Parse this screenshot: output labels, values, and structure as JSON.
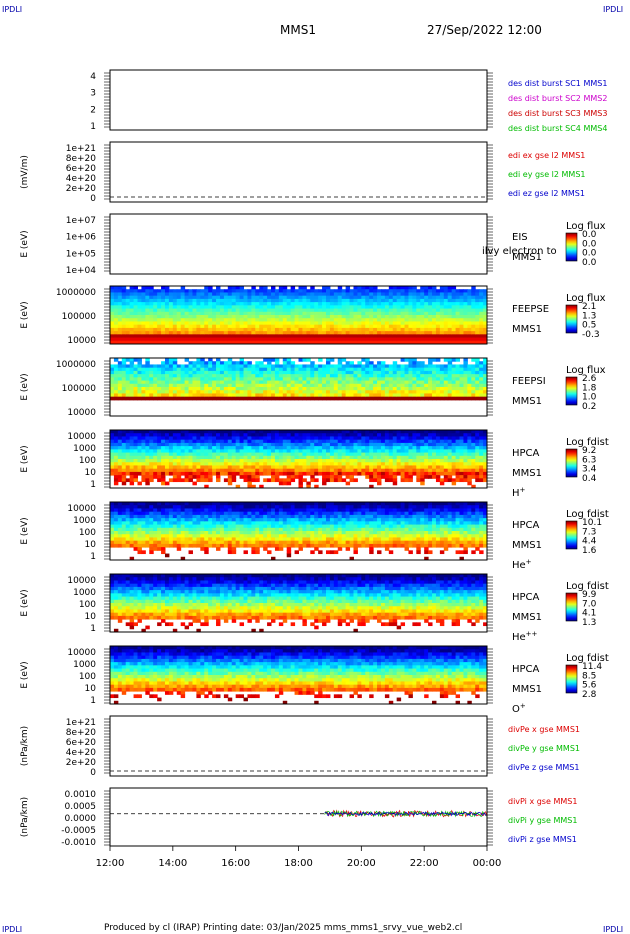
{
  "corner_tags": {
    "tl": "IPDLI",
    "tr": "IPDLI",
    "bl": "IPDLI",
    "br": "IPDLI"
  },
  "header": {
    "spacecraft": "MMS1",
    "datetime": "27/Sep/2022 12:00"
  },
  "footer": {
    "text": "Produced by cl (IRAP)   Printing date: 03/Jan/2025   mms_mms1_srvy_vue_web2.cl"
  },
  "colors": {
    "mms1": "#0000cc",
    "mms2": "#cc00cc",
    "mms3": "#cc0000",
    "mms4": "#00bb00",
    "x": "#dd0000",
    "y": "#00bb00",
    "z": "#0000cc"
  },
  "chart_data": [
    {
      "type": "line",
      "title": "",
      "ylabel": "",
      "ylim": [
        0.5,
        4.5
      ],
      "yticks": [
        "4",
        "3",
        "2",
        "1"
      ],
      "legend": [
        {
          "text": "des dist burst SC1 MMS1",
          "color": "#0000cc"
        },
        {
          "text": "des dist burst SC2 MMS2",
          "color": "#cc00cc"
        },
        {
          "text": "des dist burst SC3 MMS3",
          "color": "#cc0000"
        },
        {
          "text": "des dist burst SC4 MMS4",
          "color": "#00bb00"
        }
      ],
      "series": []
    },
    {
      "type": "line",
      "ylabel": "(mV/m)",
      "ylim": [
        0,
        1e+21
      ],
      "yticks": [
        "1e+21",
        "8e+20",
        "6e+20",
        "4e+20",
        "2e+20",
        "0"
      ],
      "zero_line": true,
      "legend": [
        {
          "text": "edi ex gse l2 MMS1",
          "color": "#dd0000"
        },
        {
          "text": "edi ey gse l2 MMS1",
          "color": "#00bb00"
        },
        {
          "text": "edi ez gse l2 MMS1",
          "color": "#0000cc"
        }
      ],
      "series": []
    },
    {
      "type": "heatmap",
      "ylabel": "E (eV)",
      "yticks": [
        "1e+07",
        "1e+06",
        "1e+05",
        "1e+04"
      ],
      "instrument": [
        "EIS",
        "MMS1"
      ],
      "overlay": "ilvy electron to",
      "cbar_title": "Log flux",
      "cbar_ticks": [
        "0.0",
        "0.0",
        "0.0",
        "0.0"
      ],
      "data": "none"
    },
    {
      "type": "heatmap",
      "ylabel": "E (eV)",
      "yticks": [
        "1000000",
        "100000",
        "10000"
      ],
      "instrument": [
        "FEEPSE",
        "MMS1"
      ],
      "cbar_title": "Log flux",
      "cbar_ticks": [
        "2.1",
        "1.3",
        "0.5",
        "-0.3"
      ],
      "data": "spectrogram"
    },
    {
      "type": "heatmap",
      "ylabel": "E (eV)",
      "yticks": [
        "1000000",
        "100000",
        "10000"
      ],
      "instrument": [
        "FEEPSI",
        "MMS1"
      ],
      "cbar_title": "Log flux",
      "cbar_ticks": [
        "2.6",
        "1.8",
        "1.0",
        "0.2"
      ],
      "data": "spectrogram"
    },
    {
      "type": "heatmap",
      "ylabel": "E (eV)",
      "yticks": [
        "10000",
        "1000",
        "100",
        "10",
        "1"
      ],
      "instrument": [
        "HPCA",
        "MMS1",
        "H+"
      ],
      "cbar_title": "Log fdist",
      "cbar_ticks": [
        "9.2",
        "6.3",
        "3.4",
        "0.4"
      ],
      "data": "spectrogram"
    },
    {
      "type": "heatmap",
      "ylabel": "E (eV)",
      "yticks": [
        "10000",
        "1000",
        "100",
        "10",
        "1"
      ],
      "instrument": [
        "HPCA",
        "MMS1",
        "He+"
      ],
      "cbar_title": "Log fdist",
      "cbar_ticks": [
        "10.1",
        "7.3",
        "4.4",
        "1.6"
      ],
      "data": "spectrogram"
    },
    {
      "type": "heatmap",
      "ylabel": "E (eV)",
      "yticks": [
        "10000",
        "1000",
        "100",
        "10",
        "1"
      ],
      "instrument": [
        "HPCA",
        "MMS1",
        "He++"
      ],
      "cbar_title": "Log fdist",
      "cbar_ticks": [
        "9.9",
        "7.0",
        "4.1",
        "1.3"
      ],
      "data": "spectrogram"
    },
    {
      "type": "heatmap",
      "ylabel": "E (eV)",
      "yticks": [
        "10000",
        "1000",
        "100",
        "10",
        "1"
      ],
      "instrument": [
        "HPCA",
        "MMS1",
        "O+"
      ],
      "cbar_title": "Log fdist",
      "cbar_ticks": [
        "11.4",
        "8.5",
        "5.6",
        "2.8"
      ],
      "data": "spectrogram"
    },
    {
      "type": "line",
      "ylabel": "(nPa/km)",
      "ylim": [
        0,
        1e+21
      ],
      "yticks": [
        "1e+21",
        "8e+20",
        "6e+20",
        "4e+20",
        "2e+20",
        "0"
      ],
      "zero_line": true,
      "legend": [
        {
          "text": "divPe x gse MMS1",
          "color": "#dd0000"
        },
        {
          "text": "divPe y gse MMS1",
          "color": "#00bb00"
        },
        {
          "text": "divPe z gse MMS1",
          "color": "#0000cc"
        }
      ],
      "series": []
    },
    {
      "type": "line",
      "ylabel": "(nPa/km)",
      "ylim": [
        -0.0015,
        0.0012
      ],
      "yticks": [
        "0.0010",
        "0.0005",
        "0.0000",
        "-0.0005",
        "-0.0010"
      ],
      "zero_line": true,
      "legend": [
        {
          "text": "divPi x gse MMS1",
          "color": "#dd0000"
        },
        {
          "text": "divPi y gse MMS1",
          "color": "#00bb00"
        },
        {
          "text": "divPi z gse MMS1",
          "color": "#0000cc"
        }
      ],
      "series": [
        {
          "name": "divPi x gse MMS1",
          "x_start": "18:50",
          "x_end": "00:00",
          "amplitude": 0.00015
        },
        {
          "name": "divPi y gse MMS1",
          "x_start": "18:50",
          "x_end": "00:00",
          "amplitude": 0.00012
        },
        {
          "name": "divPi z gse MMS1",
          "x_start": "18:50",
          "x_end": "00:00",
          "amplitude": 8e-05
        }
      ]
    }
  ],
  "xaxis": {
    "ticks": [
      "12:00",
      "14:00",
      "16:00",
      "18:00",
      "20:00",
      "22:00",
      "00:00"
    ]
  }
}
